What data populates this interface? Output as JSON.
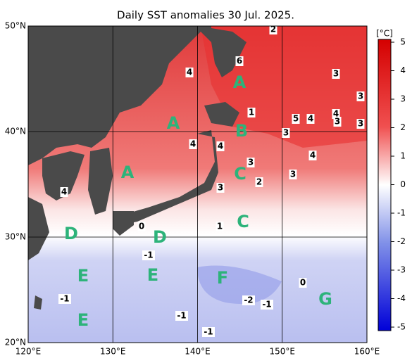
{
  "title": "Daily SST anomalies 30 Jul. 2025.",
  "lon_ticks": [
    {
      "value": 120,
      "label": "120°E"
    },
    {
      "value": 130,
      "label": "130°E"
    },
    {
      "value": 140,
      "label": "140°E"
    },
    {
      "value": 150,
      "label": "150°E"
    },
    {
      "value": 160,
      "label": "160°E"
    }
  ],
  "lat_ticks": [
    {
      "value": 20,
      "label": "20°N"
    },
    {
      "value": 30,
      "label": "30°N"
    },
    {
      "value": 40,
      "label": "40°N"
    },
    {
      "value": 50,
      "label": "50°N"
    }
  ],
  "colorbar": {
    "unit": "[°C]",
    "lim": [
      -5,
      5
    ],
    "ticks": [
      5,
      4,
      3,
      2,
      1,
      0,
      -1,
      -2,
      -3,
      -4,
      -5
    ]
  },
  "contour_labels": [
    2,
    6,
    4,
    3,
    3,
    1,
    5,
    4,
    4,
    3,
    3,
    3,
    4,
    4,
    4,
    3,
    3,
    2,
    3,
    4,
    0,
    1,
    -1,
    0,
    -1,
    -2,
    -1,
    -1,
    -1
  ],
  "region_labels": [
    "A",
    "A",
    "A",
    "B",
    "C",
    "C",
    "D",
    "D",
    "E",
    "E",
    "F",
    "G",
    "E"
  ]
}
